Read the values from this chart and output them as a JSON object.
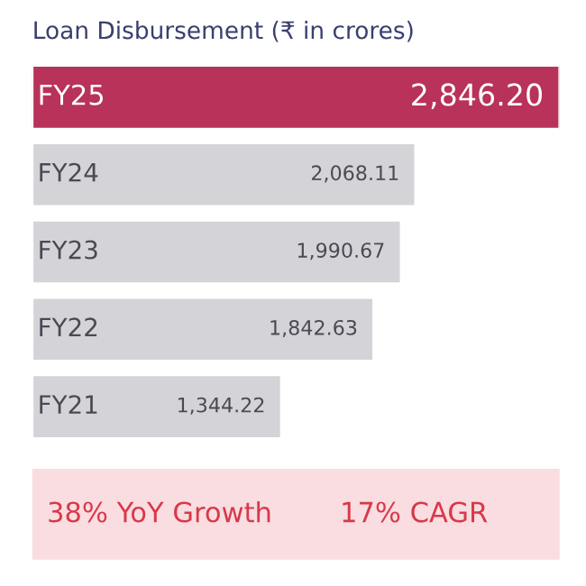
{
  "chart_data": {
    "type": "bar",
    "orientation": "horizontal",
    "title": "Loan Disbursement (₹ in crores)",
    "categories": [
      "FY25",
      "FY24",
      "FY23",
      "FY22",
      "FY21"
    ],
    "values": [
      2846.2,
      2068.11,
      1990.67,
      1842.63,
      1344.22
    ],
    "value_labels": [
      "2,846.20",
      "2,068.11",
      "1,990.67",
      "1,842.63",
      "1,344.22"
    ],
    "colors": [
      "#b8325a",
      "#d4d4d8",
      "#d4d4d8",
      "#d4d4d8",
      "#d4d4d8"
    ],
    "annotations": [
      "38% YoY Growth",
      "17% CAGR"
    ],
    "legend": false
  }
}
